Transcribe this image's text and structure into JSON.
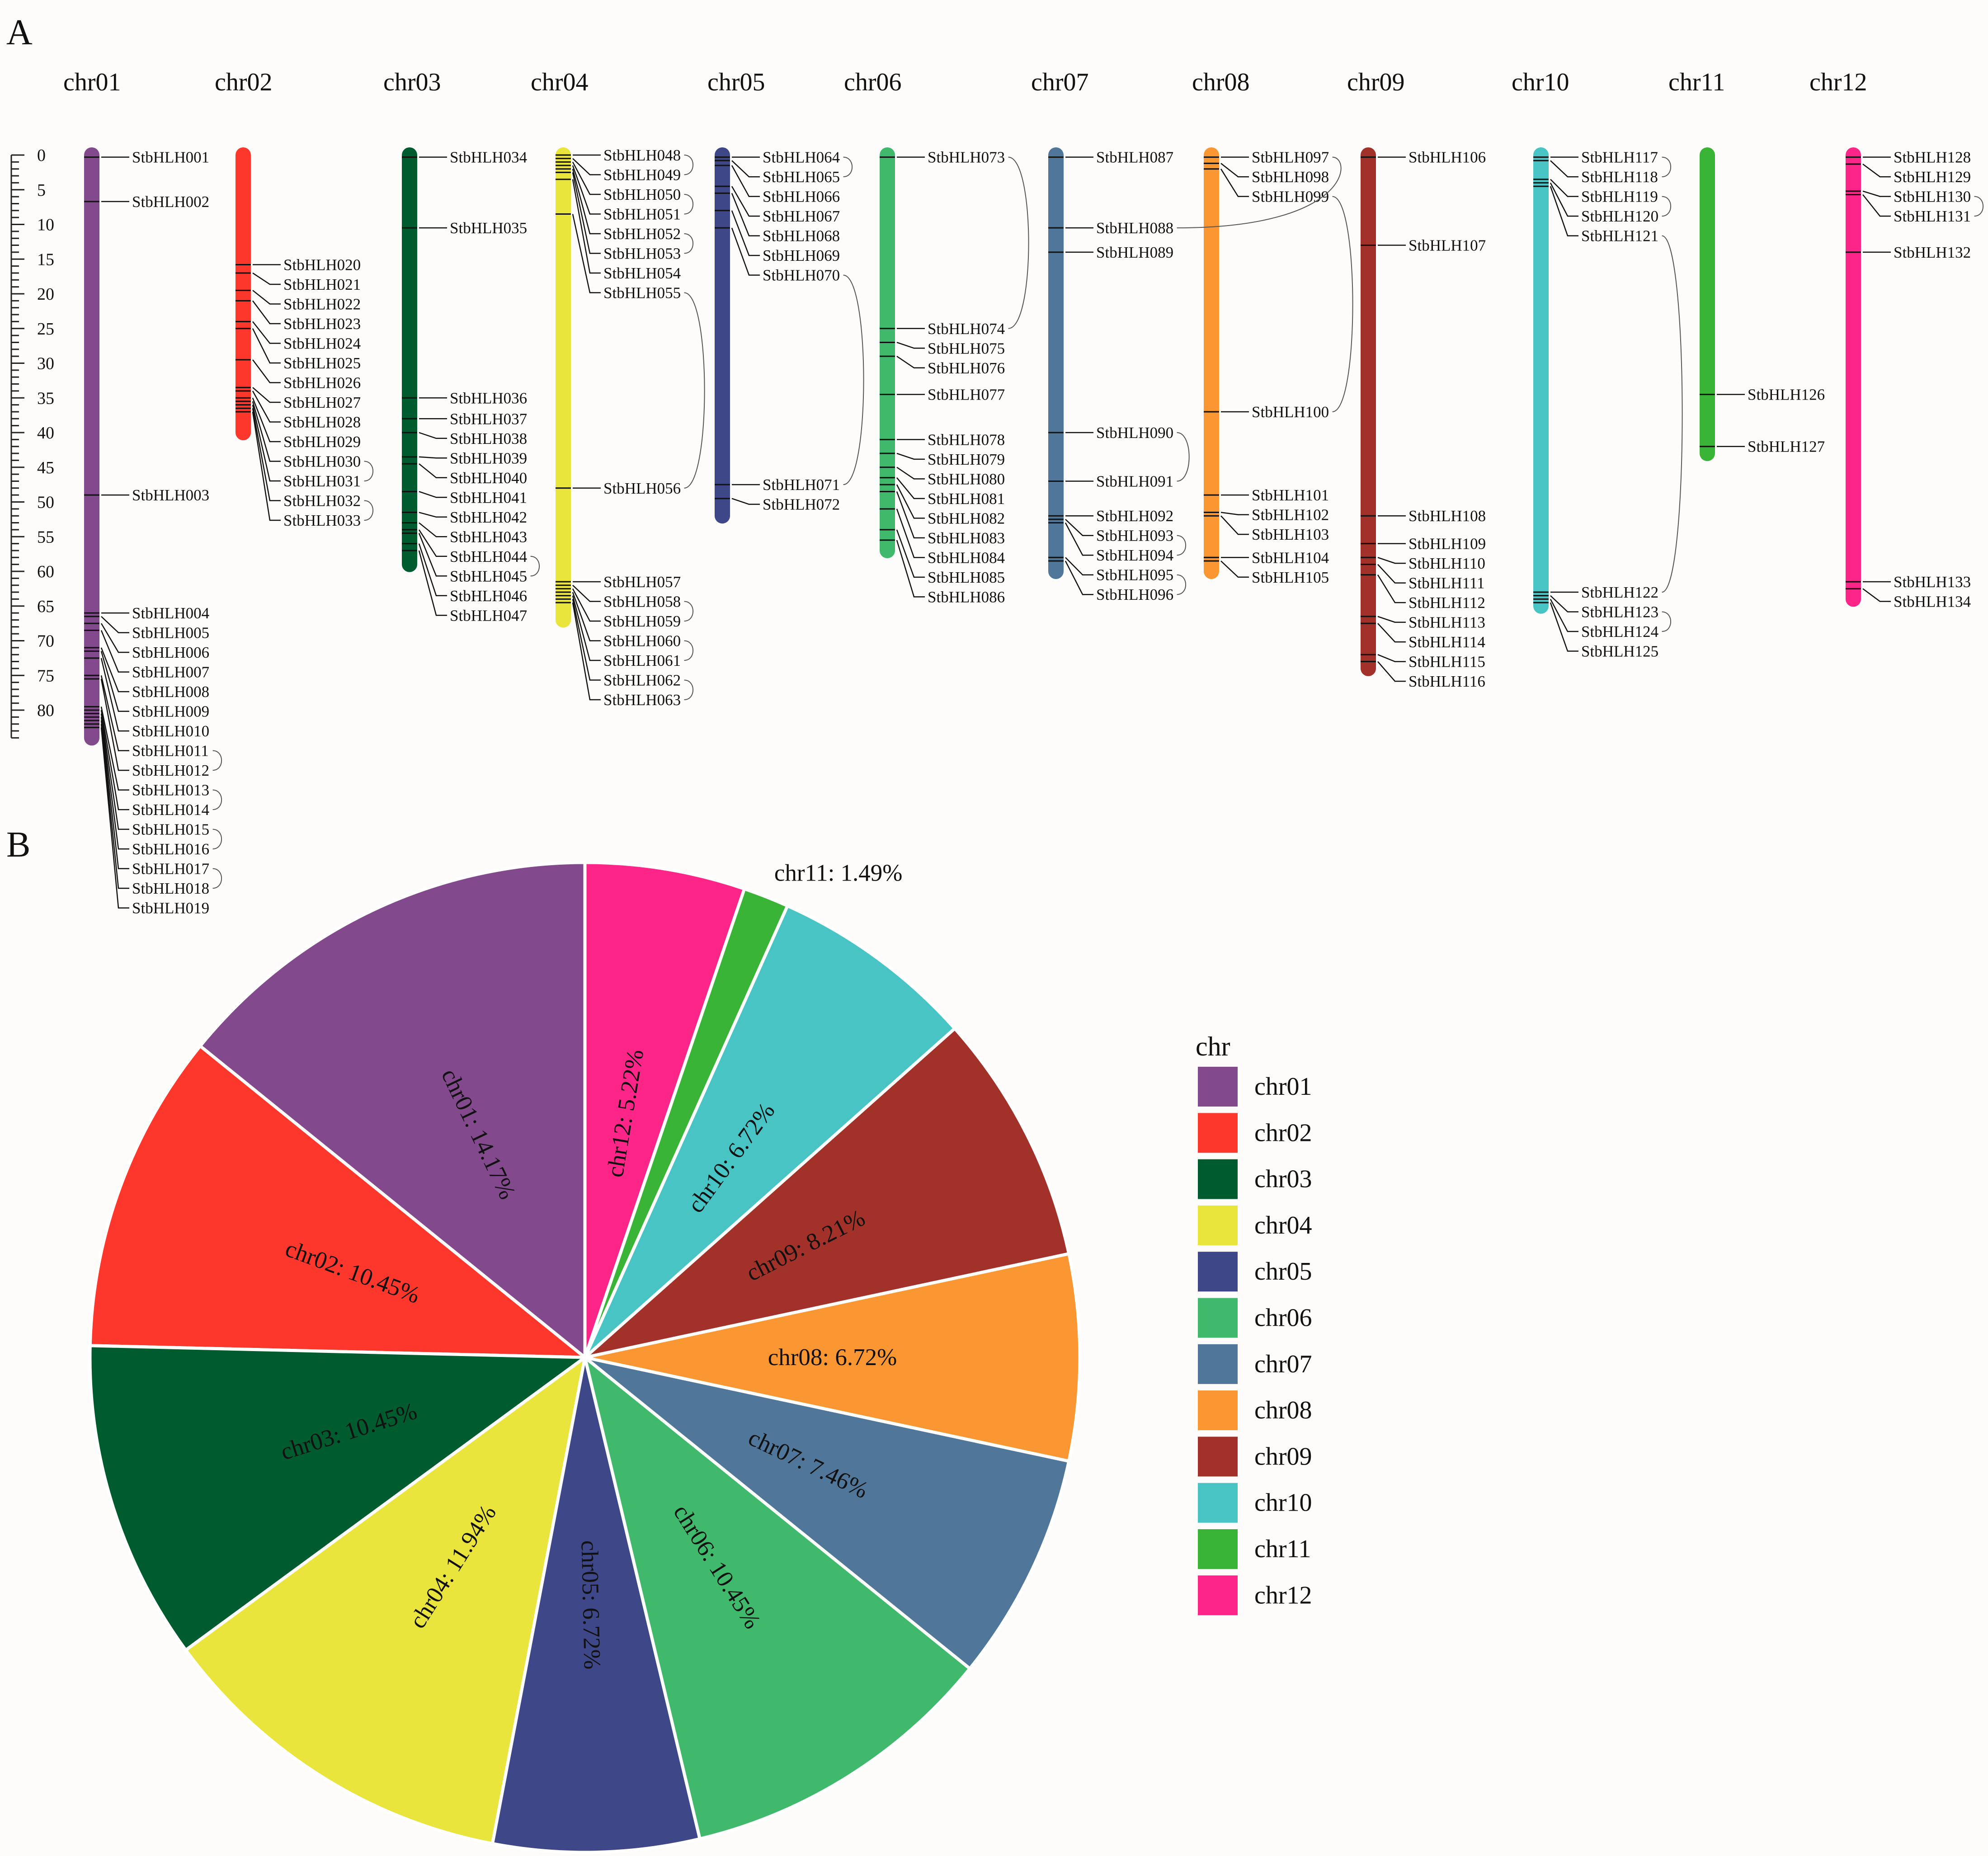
{
  "panel_labels": {
    "a": "A",
    "b": "B"
  },
  "colors": {
    "chr01": "#83498d",
    "chr02": "#fd372c",
    "chr03": "#005c2e",
    "chr04": "#e9e53d",
    "chr05": "#3e4889",
    "chr06": "#40b96d",
    "chr07": "#50779a",
    "chr08": "#fb9732",
    "chr09": "#a23229",
    "chr10": "#49c4c4",
    "chr11": "#3ab436",
    "chr12": "#fd2688"
  },
  "chart_data": [
    {
      "type": "chromosome_map",
      "axis_ticks": [
        "0",
        "5",
        "10",
        "15",
        "20",
        "25",
        "30",
        "35",
        "40",
        "45",
        "50",
        "55",
        "60",
        "65",
        "70",
        "75",
        "80"
      ],
      "chromosomes": [
        {
          "name": "chr01",
          "length": 84,
          "genes": [
            {
              "id": "StbHLH001",
              "pos": 0.3
            },
            {
              "id": "StbHLH002",
              "pos": 6.7
            },
            {
              "id": "StbHLH003",
              "pos": 49
            },
            {
              "id": "StbHLH004",
              "pos": 66
            },
            {
              "id": "StbHLH005",
              "pos": 66.5
            },
            {
              "id": "StbHLH006",
              "pos": 67.5
            },
            {
              "id": "StbHLH007",
              "pos": 68.5
            },
            {
              "id": "StbHLH008",
              "pos": 71
            },
            {
              "id": "StbHLH009",
              "pos": 71.5
            },
            {
              "id": "StbHLH010",
              "pos": 72.5
            },
            {
              "id": "StbHLH011",
              "pos": 75
            },
            {
              "id": "StbHLH012",
              "pos": 75.5
            },
            {
              "id": "StbHLH013",
              "pos": 79.5
            },
            {
              "id": "StbHLH014",
              "pos": 80
            },
            {
              "id": "StbHLH015",
              "pos": 80.5
            },
            {
              "id": "StbHLH016",
              "pos": 81
            },
            {
              "id": "StbHLH017",
              "pos": 81.5
            },
            {
              "id": "StbHLH018",
              "pos": 82
            },
            {
              "id": "StbHLH019",
              "pos": 82.5
            }
          ]
        },
        {
          "name": "chr02",
          "length": 40,
          "genes": [
            {
              "id": "StbHLH020",
              "pos": 15.8
            },
            {
              "id": "StbHLH021",
              "pos": 17
            },
            {
              "id": "StbHLH022",
              "pos": 19.5
            },
            {
              "id": "StbHLH023",
              "pos": 21
            },
            {
              "id": "StbHLH024",
              "pos": 24
            },
            {
              "id": "StbHLH025",
              "pos": 25
            },
            {
              "id": "StbHLH026",
              "pos": 29.5
            },
            {
              "id": "StbHLH027",
              "pos": 33.5
            },
            {
              "id": "StbHLH028",
              "pos": 34
            },
            {
              "id": "StbHLH029",
              "pos": 35
            },
            {
              "id": "StbHLH030",
              "pos": 35.5
            },
            {
              "id": "StbHLH031",
              "pos": 36
            },
            {
              "id": "StbHLH032",
              "pos": 36.5
            },
            {
              "id": "StbHLH033",
              "pos": 37
            }
          ]
        },
        {
          "name": "chr03",
          "length": 59,
          "genes": [
            {
              "id": "StbHLH034",
              "pos": 0.3
            },
            {
              "id": "StbHLH035",
              "pos": 10.5
            },
            {
              "id": "StbHLH036",
              "pos": 35
            },
            {
              "id": "StbHLH037",
              "pos": 38
            },
            {
              "id": "StbHLH038",
              "pos": 40
            },
            {
              "id": "StbHLH039",
              "pos": 43.5
            },
            {
              "id": "StbHLH040",
              "pos": 44.5
            },
            {
              "id": "StbHLH041",
              "pos": 48.5
            },
            {
              "id": "StbHLH042",
              "pos": 51.5
            },
            {
              "id": "StbHLH043",
              "pos": 53
            },
            {
              "id": "StbHLH044",
              "pos": 54
            },
            {
              "id": "StbHLH045",
              "pos": 54.5
            },
            {
              "id": "StbHLH046",
              "pos": 56
            },
            {
              "id": "StbHLH047",
              "pos": 57
            }
          ]
        },
        {
          "name": "chr04",
          "length": 67,
          "genes": [
            {
              "id": "StbHLH048",
              "pos": 0
            },
            {
              "id": "StbHLH049",
              "pos": 0.5
            },
            {
              "id": "StbHLH050",
              "pos": 1
            },
            {
              "id": "StbHLH051",
              "pos": 1.5
            },
            {
              "id": "StbHLH052",
              "pos": 2
            },
            {
              "id": "StbHLH053",
              "pos": 2.5
            },
            {
              "id": "StbHLH054",
              "pos": 3.5
            },
            {
              "id": "StbHLH055",
              "pos": 8.5
            },
            {
              "id": "StbHLH056",
              "pos": 48
            },
            {
              "id": "StbHLH057",
              "pos": 61.5
            },
            {
              "id": "StbHLH058",
              "pos": 62
            },
            {
              "id": "StbHLH059",
              "pos": 62.5
            },
            {
              "id": "StbHLH060",
              "pos": 63
            },
            {
              "id": "StbHLH061",
              "pos": 63.5
            },
            {
              "id": "StbHLH062",
              "pos": 64
            },
            {
              "id": "StbHLH063",
              "pos": 64.5
            }
          ]
        },
        {
          "name": "chr05",
          "length": 52,
          "genes": [
            {
              "id": "StbHLH064",
              "pos": 0.3
            },
            {
              "id": "StbHLH065",
              "pos": 0.8
            },
            {
              "id": "StbHLH066",
              "pos": 1.5
            },
            {
              "id": "StbHLH067",
              "pos": 4.5
            },
            {
              "id": "StbHLH068",
              "pos": 5.5
            },
            {
              "id": "StbHLH069",
              "pos": 8
            },
            {
              "id": "StbHLH070",
              "pos": 10.5
            },
            {
              "id": "StbHLH071",
              "pos": 47.5
            },
            {
              "id": "StbHLH072",
              "pos": 49.5
            }
          ]
        },
        {
          "name": "chr06",
          "length": 57,
          "genes": [
            {
              "id": "StbHLH073",
              "pos": 0.3
            },
            {
              "id": "StbHLH074",
              "pos": 25
            },
            {
              "id": "StbHLH075",
              "pos": 27
            },
            {
              "id": "StbHLH076",
              "pos": 29
            },
            {
              "id": "StbHLH077",
              "pos": 34.5
            },
            {
              "id": "StbHLH078",
              "pos": 41
            },
            {
              "id": "StbHLH079",
              "pos": 43
            },
            {
              "id": "StbHLH080",
              "pos": 45
            },
            {
              "id": "StbHLH081",
              "pos": 46.5
            },
            {
              "id": "StbHLH082",
              "pos": 47.5
            },
            {
              "id": "StbHLH083",
              "pos": 48.5
            },
            {
              "id": "StbHLH084",
              "pos": 51
            },
            {
              "id": "StbHLH085",
              "pos": 54
            },
            {
              "id": "StbHLH086",
              "pos": 55.5
            }
          ]
        },
        {
          "name": "chr07",
          "length": 60,
          "genes": [
            {
              "id": "StbHLH087",
              "pos": 0.3
            },
            {
              "id": "StbHLH088",
              "pos": 10.5
            },
            {
              "id": "StbHLH089",
              "pos": 14
            },
            {
              "id": "StbHLH090",
              "pos": 40
            },
            {
              "id": "StbHLH091",
              "pos": 47
            },
            {
              "id": "StbHLH092",
              "pos": 52
            },
            {
              "id": "StbHLH093",
              "pos": 52.5
            },
            {
              "id": "StbHLH094",
              "pos": 53
            },
            {
              "id": "StbHLH095",
              "pos": 58
            },
            {
              "id": "StbHLH096",
              "pos": 58.5
            }
          ]
        },
        {
          "name": "chr08",
          "length": 60,
          "genes": [
            {
              "id": "StbHLH097",
              "pos": 0.3
            },
            {
              "id": "StbHLH098",
              "pos": 1.2
            },
            {
              "id": "StbHLH099",
              "pos": 2
            },
            {
              "id": "StbHLH100",
              "pos": 37
            },
            {
              "id": "StbHLH101",
              "pos": 49
            },
            {
              "id": "StbHLH102",
              "pos": 51.5
            },
            {
              "id": "StbHLH103",
              "pos": 52
            },
            {
              "id": "StbHLH104",
              "pos": 58
            },
            {
              "id": "StbHLH105",
              "pos": 58.5
            }
          ]
        },
        {
          "name": "chr09",
          "length": 74,
          "genes": [
            {
              "id": "StbHLH106",
              "pos": 0.3
            },
            {
              "id": "StbHLH107",
              "pos": 13
            },
            {
              "id": "StbHLH108",
              "pos": 52
            },
            {
              "id": "StbHLH109",
              "pos": 56
            },
            {
              "id": "StbHLH110",
              "pos": 58
            },
            {
              "id": "StbHLH111",
              "pos": 59
            },
            {
              "id": "StbHLH112",
              "pos": 60.5
            },
            {
              "id": "StbHLH113",
              "pos": 66.5
            },
            {
              "id": "StbHLH114",
              "pos": 67.5
            },
            {
              "id": "StbHLH115",
              "pos": 72
            },
            {
              "id": "StbHLH116",
              "pos": 73
            }
          ]
        },
        {
          "name": "chr10",
          "length": 65,
          "genes": [
            {
              "id": "StbHLH117",
              "pos": 0.3
            },
            {
              "id": "StbHLH118",
              "pos": 0.8
            },
            {
              "id": "StbHLH119",
              "pos": 3.5
            },
            {
              "id": "StbHLH120",
              "pos": 4
            },
            {
              "id": "StbHLH121",
              "pos": 4.5
            },
            {
              "id": "StbHLH122",
              "pos": 63
            },
            {
              "id": "StbHLH123",
              "pos": 63.5
            },
            {
              "id": "StbHLH124",
              "pos": 64
            },
            {
              "id": "StbHLH125",
              "pos": 64.5
            }
          ]
        },
        {
          "name": "chr11",
          "length": 43,
          "genes": [
            {
              "id": "StbHLH126",
              "pos": 34.5
            },
            {
              "id": "StbHLH127",
              "pos": 42
            }
          ]
        },
        {
          "name": "chr12",
          "length": 64,
          "genes": [
            {
              "id": "StbHLH128",
              "pos": 0.3
            },
            {
              "id": "StbHLH129",
              "pos": 1.3
            },
            {
              "id": "StbHLH130",
              "pos": 5.2
            },
            {
              "id": "StbHLH131",
              "pos": 5.7
            },
            {
              "id": "StbHLH132",
              "pos": 14
            },
            {
              "id": "StbHLH133",
              "pos": 61.5
            },
            {
              "id": "StbHLH134",
              "pos": 62.5
            }
          ]
        }
      ],
      "links": [
        [
          "StbHLH088",
          "StbHLH097"
        ],
        [
          "StbHLH099",
          "StbHLH100"
        ],
        [
          "StbHLH070",
          "StbHLH071"
        ],
        [
          "StbHLH073",
          "StbHLH074"
        ],
        [
          "StbHLH121",
          "StbHLH122"
        ],
        [
          "StbHLH090",
          "StbHLH091"
        ],
        [
          "StbHLH055",
          "StbHLH056"
        ]
      ]
    },
    {
      "type": "pie",
      "legend_title": "chr",
      "legend_position": "right",
      "labels": [
        "chr01",
        "chr02",
        "chr03",
        "chr04",
        "chr05",
        "chr06",
        "chr07",
        "chr08",
        "chr09",
        "chr10",
        "chr11",
        "chr12"
      ],
      "values": [
        14.17,
        10.45,
        10.45,
        11.94,
        6.72,
        10.45,
        7.46,
        6.72,
        8.21,
        6.72,
        1.49,
        5.22
      ],
      "slice_labels": [
        "chr01: 14.17%",
        "chr02: 10.45%",
        "chr03: 10.45%",
        "chr04: 11.94%",
        "chr05: 6.72%",
        "chr06: 10.45%",
        "chr07: 7.46%",
        "chr08: 6.72%",
        "chr09: 8.21%",
        "chr10: 6.72%",
        "chr11: 1.49%",
        "chr12: 5.22%"
      ],
      "start": "12 o'clock",
      "direction": "counterclockwise"
    }
  ]
}
